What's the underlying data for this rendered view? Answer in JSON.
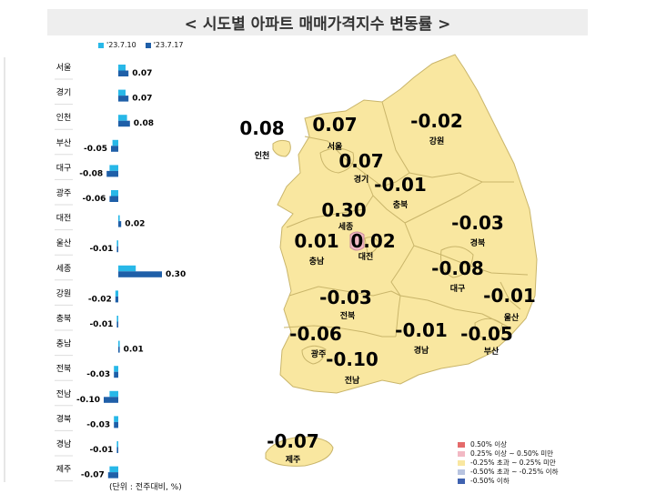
{
  "header": {
    "title": "< 시도별 아파트 매매가격지수 변동률 >"
  },
  "bar_legend": [
    {
      "label": "'23.7.10",
      "color": "#28b8e8"
    },
    {
      "label": "'23.7.17",
      "color": "#1f5fa8"
    }
  ],
  "unit_label": "(단위 : 전주대비, %)",
  "map_legend": [
    {
      "label": "0.50% 이상",
      "color": "#e46a6a"
    },
    {
      "label": "0.25% 이상 ~ 0.50% 미만",
      "color": "#f2b9c4"
    },
    {
      "label": "-0.25% 초과 ~ 0.25% 미만",
      "color": "#f9e7a0"
    },
    {
      "label": "-0.50% 초과 ~ -0.25% 이하",
      "color": "#b8c4e0"
    },
    {
      "label": "-0.50% 이하",
      "color": "#3f62b0"
    }
  ],
  "map_values": [
    {
      "region": "인천",
      "value": "0.08"
    },
    {
      "region": "서울",
      "value": "0.07"
    },
    {
      "region": "강원",
      "value": "-0.02"
    },
    {
      "region": "경기",
      "value": "0.07"
    },
    {
      "region": "충북",
      "value": "-0.01"
    },
    {
      "region": "세종",
      "value": "0.30"
    },
    {
      "region": "경북",
      "value": "-0.03"
    },
    {
      "region": "충남",
      "value": "0.01"
    },
    {
      "region": "대전",
      "value": "0.02"
    },
    {
      "region": "대구",
      "value": "-0.08"
    },
    {
      "region": "울산",
      "value": "-0.01"
    },
    {
      "region": "전북",
      "value": "-0.03"
    },
    {
      "region": "광주",
      "value": "-0.06"
    },
    {
      "region": "경남",
      "value": "-0.01"
    },
    {
      "region": "부산",
      "value": "-0.05"
    },
    {
      "region": "전남",
      "value": "-0.10"
    },
    {
      "region": "제주",
      "value": "-0.07"
    }
  ],
  "chart_data": {
    "type": "bar",
    "orientation": "horizontal",
    "categories": [
      "서울",
      "경기",
      "인천",
      "부산",
      "대구",
      "광주",
      "대전",
      "울산",
      "세종",
      "강원",
      "충북",
      "충남",
      "전북",
      "전남",
      "경북",
      "경남",
      "제주"
    ],
    "series": [
      {
        "name": "'23.7.10",
        "color": "#28b8e8",
        "values": [
          0.05,
          0.05,
          0.06,
          -0.04,
          -0.06,
          -0.05,
          0.01,
          -0.01,
          0.12,
          -0.02,
          -0.01,
          0.01,
          -0.03,
          -0.06,
          -0.03,
          -0.01,
          -0.06
        ]
      },
      {
        "name": "'23.7.17",
        "color": "#1f5fa8",
        "values": [
          0.07,
          0.07,
          0.08,
          -0.05,
          -0.08,
          -0.06,
          0.02,
          -0.01,
          0.3,
          -0.02,
          -0.01,
          0.01,
          -0.03,
          -0.1,
          -0.03,
          -0.01,
          -0.07
        ]
      }
    ],
    "value_labels": [
      "0.07",
      "0.07",
      "0.08",
      "-0.05",
      "-0.08",
      "-0.06",
      "0.02",
      "-0.01",
      "0.30",
      "-0.02",
      "-0.01",
      "0.01",
      "-0.03",
      "-0.10",
      "-0.03",
      "-0.01",
      "-0.07"
    ],
    "xlim": [
      -0.15,
      0.35
    ]
  }
}
